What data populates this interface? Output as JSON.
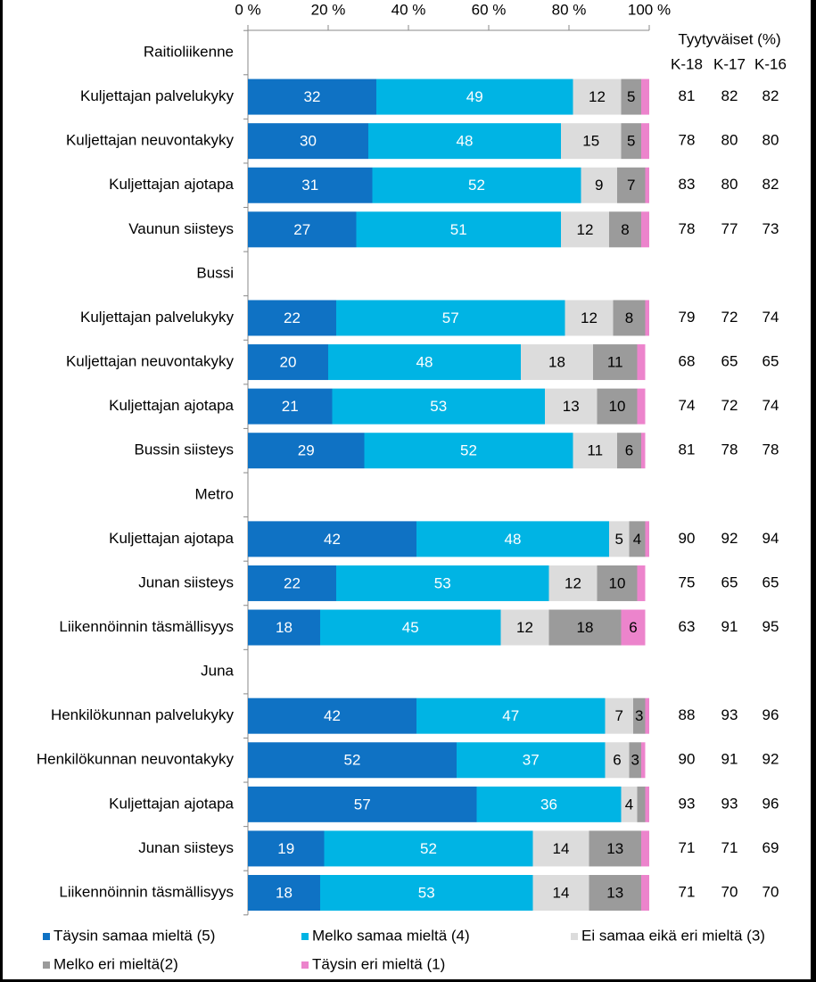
{
  "chart_data": {
    "type": "stacked-bar-horizontal",
    "categories": [
      "Raitioliikenne",
      "Kuljettajan palvelukyky",
      "Kuljettajan neuvontakyky",
      "Kuljettajan ajotapa",
      "Vaunun siisteys",
      "Bussi",
      "Kuljettajan palvelukyky",
      "Kuljettajan neuvontakyky",
      "Kuljettajan ajotapa",
      "Bussin siisteys",
      "Metro",
      "Kuljettajan ajotapa",
      "Junan siisteys",
      "Liikennöinnin täsmällisyys",
      "Juna",
      "Henkilökunnan palvelukyky",
      "Henkilökunnan neuvontakyky",
      "Kuljettajan ajotapa",
      "Junan siisteys",
      "Liikennöinnin täsmällisyys"
    ],
    "series": [
      {
        "name": "Täysin samaa mieltä (5)",
        "color": "#0f72c4",
        "label_color": "#ffffff",
        "values": [
          null,
          32,
          30,
          31,
          27,
          null,
          22,
          20,
          21,
          29,
          null,
          42,
          22,
          18,
          null,
          42,
          52,
          57,
          19,
          18
        ]
      },
      {
        "name": "Melko samaa mieltä (4)",
        "color": "#00b4e4",
        "label_color": "#ffffff",
        "values": [
          null,
          49,
          48,
          52,
          51,
          null,
          57,
          48,
          53,
          52,
          null,
          48,
          53,
          45,
          null,
          47,
          37,
          36,
          52,
          53
        ]
      },
      {
        "name": "Ei samaa eikä eri mieltä (3)",
        "color": "#dcdcdc",
        "label_color": "#000000",
        "values": [
          null,
          12,
          15,
          9,
          12,
          null,
          12,
          18,
          13,
          11,
          null,
          5,
          12,
          12,
          null,
          7,
          6,
          4,
          14,
          14
        ]
      },
      {
        "name": "Melko eri mieltä(2)",
        "color": "#9b9b9b",
        "label_color": "#000000",
        "values": [
          null,
          5,
          5,
          7,
          8,
          null,
          8,
          11,
          10,
          6,
          null,
          4,
          10,
          18,
          null,
          3,
          3,
          2,
          13,
          13
        ]
      },
      {
        "name": "Täysin eri mieltä (1)",
        "color": "#ec84cc",
        "label_color": "#000000",
        "values": [
          null,
          2,
          2,
          1,
          2,
          null,
          1,
          2,
          2,
          1,
          null,
          1,
          2,
          6,
          null,
          1,
          1,
          1,
          2,
          2
        ]
      }
    ],
    "xlim": [
      0,
      100
    ],
    "xticks": [
      {
        "value": 0,
        "label": "0 %"
      },
      {
        "value": 20,
        "label": "20 %"
      },
      {
        "value": 40,
        "label": "40 %"
      },
      {
        "value": 60,
        "label": "60 %"
      },
      {
        "value": 80,
        "label": "80 %"
      },
      {
        "value": 100,
        "label": "100 %"
      }
    ],
    "grid": false,
    "legend": "bottom",
    "table": {
      "title": "Tyytyväiset (%)",
      "columns": [
        "K-18",
        "K-17",
        "K-16"
      ],
      "rows": [
        null,
        [
          81,
          82,
          82
        ],
        [
          78,
          80,
          80
        ],
        [
          83,
          80,
          82
        ],
        [
          78,
          77,
          73
        ],
        null,
        [
          79,
          72,
          74
        ],
        [
          68,
          65,
          65
        ],
        [
          74,
          72,
          74
        ],
        [
          81,
          78,
          78
        ],
        null,
        [
          90,
          92,
          94
        ],
        [
          75,
          65,
          65
        ],
        [
          63,
          91,
          95
        ],
        null,
        [
          88,
          93,
          96
        ],
        [
          90,
          91,
          92
        ],
        [
          93,
          93,
          96
        ],
        [
          71,
          71,
          69
        ],
        [
          71,
          70,
          70
        ]
      ]
    }
  }
}
